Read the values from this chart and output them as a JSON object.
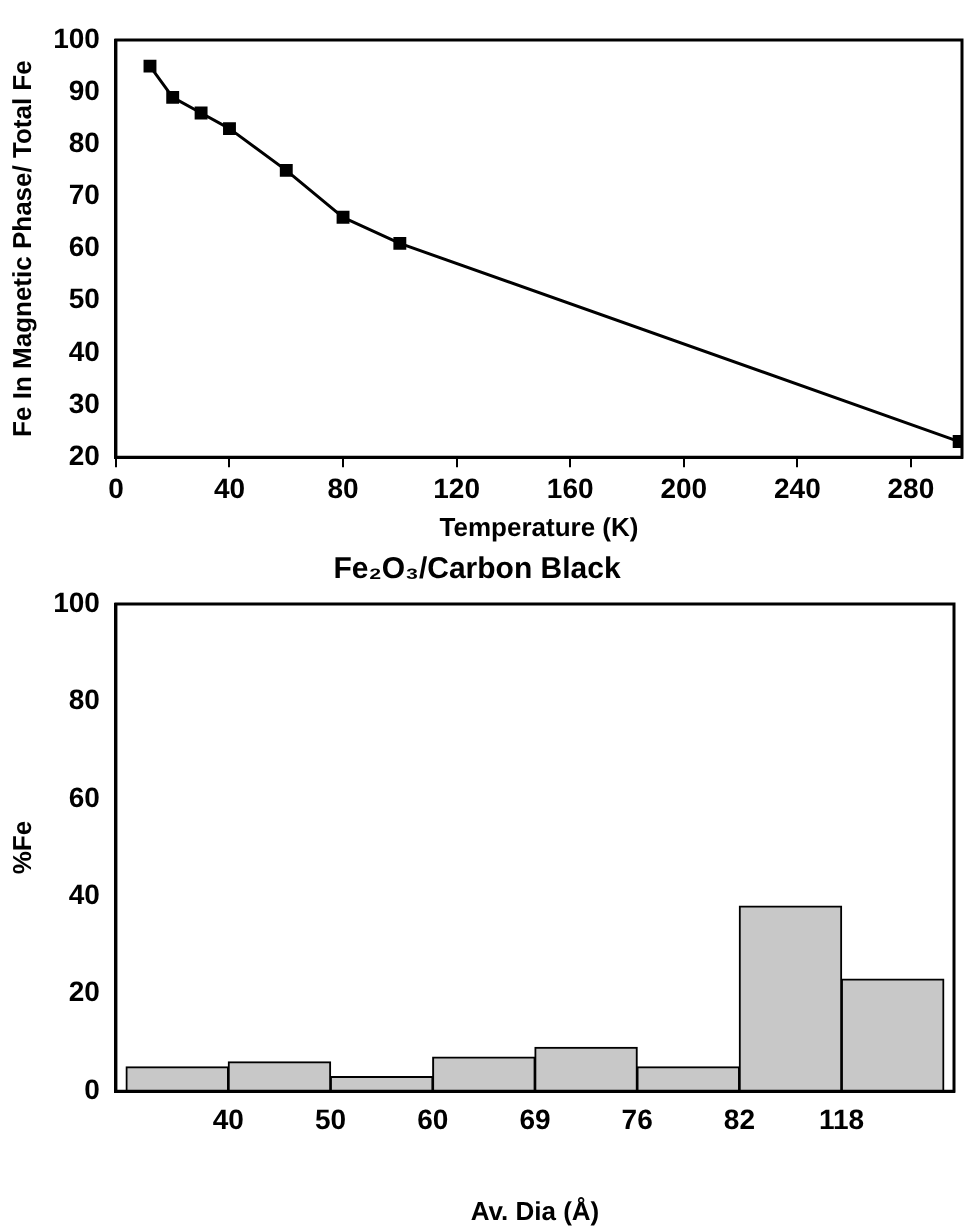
{
  "chart_data": [
    {
      "type": "line",
      "xlabel": "Temperature (K)",
      "ylabel": "Fe In Magnetic Phase/ Total Fe",
      "x": [
        12,
        20,
        30,
        40,
        60,
        80,
        100,
        297
      ],
      "series": [
        {
          "color": "#000000",
          "values": [
            95,
            89,
            86,
            83,
            75,
            66,
            61,
            23
          ]
        }
      ],
      "xlim": [
        0,
        298
      ],
      "xticks": [
        0,
        40,
        80,
        120,
        160,
        200,
        240,
        280
      ],
      "ylim": [
        20,
        100
      ],
      "yticks": [
        20,
        30,
        40,
        50,
        60,
        70,
        80,
        90,
        100
      ],
      "grid": false,
      "legend": false,
      "marker": "square",
      "line_style": "solid"
    },
    {
      "type": "bar",
      "title": "Fe₂O₃/Carbon Black",
      "xlabel": "Av. Dia (Å)",
      "ylabel": "%Fe",
      "categories": [
        null,
        null,
        null,
        null,
        null,
        null,
        null,
        null
      ],
      "annotations": [
        "40",
        "50",
        "60",
        "69",
        "76",
        "82",
        "118"
      ],
      "values": [
        5,
        6,
        3,
        7,
        9,
        5,
        38,
        23
      ],
      "color": "#c8c8c8",
      "ylim": [
        0,
        100
      ],
      "yticks": [
        0,
        20,
        40,
        60,
        80,
        100
      ],
      "grid": false,
      "legend": false
    }
  ]
}
